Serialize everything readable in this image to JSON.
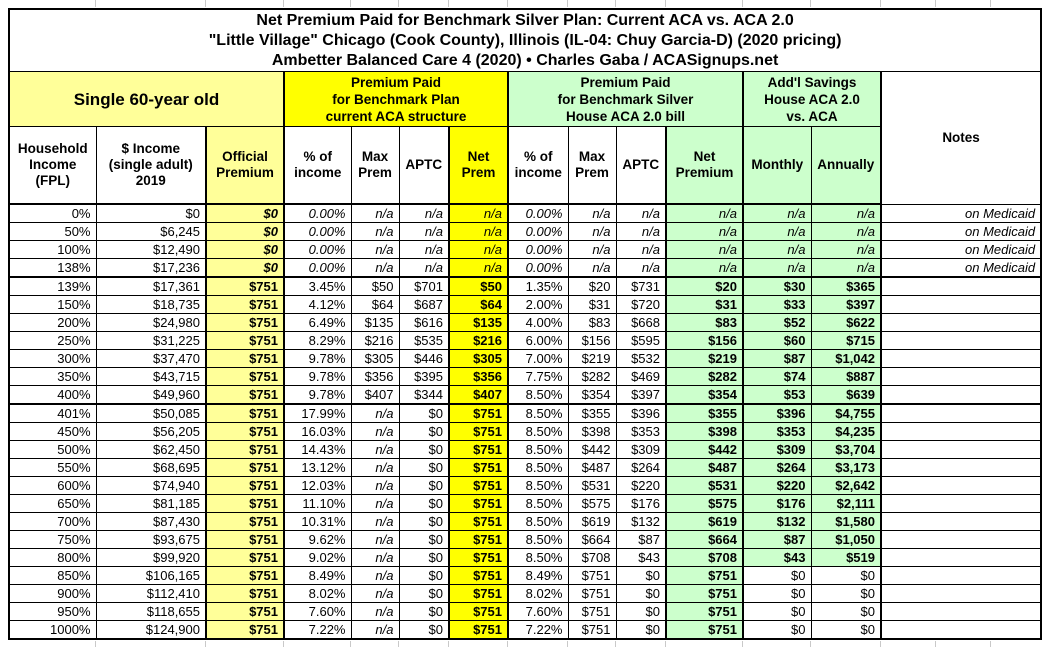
{
  "title": {
    "line1": "Net Premium Paid for Benchmark Silver Plan: Current ACA vs. ACA 2.0",
    "line2": "\"Little Village\" Chicago (Cook County), Illinois (IL-04: Chuy Garcia-D) (2020 pricing)",
    "line3": "Ambetter Balanced Care 4 (2020) • Charles Gaba / ACASignups.net"
  },
  "colors": {
    "pale_yellow": "#FFFF99",
    "bright_yellow": "#FFFF00",
    "pale_green": "#CCFFCC",
    "grid_black": "#000000"
  },
  "header": {
    "single_group": "Single 60-year old",
    "aca_group_lines": [
      "Premium Paid",
      "for Benchmark Plan",
      "current ACA structure"
    ],
    "aca2_group_lines": [
      "Premium Paid",
      "for Benchmark Silver",
      "House ACA 2.0 bill"
    ],
    "savings_group_lines": [
      "Add'l Savings",
      "House ACA 2.0",
      "vs. ACA"
    ],
    "notes": "Notes",
    "columns": [
      {
        "key": "household-income-fpl",
        "lines": [
          "Household",
          "Income",
          "(FPL)"
        ]
      },
      {
        "key": "income-2019",
        "lines": [
          "$ Income",
          "(single adult)",
          "2019"
        ]
      },
      {
        "key": "official-premium",
        "lines": [
          "Official",
          "Premium"
        ]
      },
      {
        "key": "aca-pct-of-income",
        "lines": [
          "% of",
          "income"
        ]
      },
      {
        "key": "aca-max-prem",
        "lines": [
          "Max",
          "Prem"
        ]
      },
      {
        "key": "aca-aptc",
        "lines": [
          "APTC"
        ]
      },
      {
        "key": "aca-net-prem",
        "lines": [
          "Net",
          "Prem"
        ]
      },
      {
        "key": "aca2-pct-of-income",
        "lines": [
          "% of",
          "income"
        ]
      },
      {
        "key": "aca2-max-prem",
        "lines": [
          "Max",
          "Prem"
        ]
      },
      {
        "key": "aca2-aptc",
        "lines": [
          "APTC"
        ]
      },
      {
        "key": "aca2-net-premium",
        "lines": [
          "Net",
          "Premium"
        ]
      },
      {
        "key": "monthly-savings",
        "lines": [
          "Monthly"
        ]
      },
      {
        "key": "annual-savings",
        "lines": [
          "Annually"
        ]
      }
    ]
  },
  "rows": [
    {
      "cells": [
        "0%",
        "$0",
        "$0",
        "0.00%",
        "n/a",
        "n/a",
        "n/a",
        "0.00%",
        "n/a",
        "n/a",
        "n/a",
        "n/a",
        "n/a",
        "on Medicaid"
      ],
      "medicaid": true
    },
    {
      "cells": [
        "50%",
        "$6,245",
        "$0",
        "0.00%",
        "n/a",
        "n/a",
        "n/a",
        "0.00%",
        "n/a",
        "n/a",
        "n/a",
        "n/a",
        "n/a",
        "on Medicaid"
      ],
      "medicaid": true
    },
    {
      "cells": [
        "100%",
        "$12,490",
        "$0",
        "0.00%",
        "n/a",
        "n/a",
        "n/a",
        "0.00%",
        "n/a",
        "n/a",
        "n/a",
        "n/a",
        "n/a",
        "on Medicaid"
      ],
      "medicaid": true
    },
    {
      "cells": [
        "138%",
        "$17,236",
        "$0",
        "0.00%",
        "n/a",
        "n/a",
        "n/a",
        "0.00%",
        "n/a",
        "n/a",
        "n/a",
        "n/a",
        "n/a",
        "on Medicaid"
      ],
      "medicaid": true,
      "thick_bottom": true
    },
    {
      "cells": [
        "139%",
        "$17,361",
        "$751",
        "3.45%",
        "$50",
        "$701",
        "$50",
        "1.35%",
        "$20",
        "$731",
        "$20",
        "$30",
        "$365",
        ""
      ]
    },
    {
      "cells": [
        "150%",
        "$18,735",
        "$751",
        "4.12%",
        "$64",
        "$687",
        "$64",
        "2.00%",
        "$31",
        "$720",
        "$31",
        "$33",
        "$397",
        ""
      ]
    },
    {
      "cells": [
        "200%",
        "$24,980",
        "$751",
        "6.49%",
        "$135",
        "$616",
        "$135",
        "4.00%",
        "$83",
        "$668",
        "$83",
        "$52",
        "$622",
        ""
      ]
    },
    {
      "cells": [
        "250%",
        "$31,225",
        "$751",
        "8.29%",
        "$216",
        "$535",
        "$216",
        "6.00%",
        "$156",
        "$595",
        "$156",
        "$60",
        "$715",
        ""
      ]
    },
    {
      "cells": [
        "300%",
        "$37,470",
        "$751",
        "9.78%",
        "$305",
        "$446",
        "$305",
        "7.00%",
        "$219",
        "$532",
        "$219",
        "$87",
        "$1,042",
        ""
      ]
    },
    {
      "cells": [
        "350%",
        "$43,715",
        "$751",
        "9.78%",
        "$356",
        "$395",
        "$356",
        "7.75%",
        "$282",
        "$469",
        "$282",
        "$74",
        "$887",
        ""
      ]
    },
    {
      "cells": [
        "400%",
        "$49,960",
        "$751",
        "9.78%",
        "$407",
        "$344",
        "$407",
        "8.50%",
        "$354",
        "$397",
        "$354",
        "$53",
        "$639",
        ""
      ],
      "thick_bottom": true
    },
    {
      "cells": [
        "401%",
        "$50,085",
        "$751",
        "17.99%",
        "n/a",
        "$0",
        "$751",
        "8.50%",
        "$355",
        "$396",
        "$355",
        "$396",
        "$4,755",
        ""
      ]
    },
    {
      "cells": [
        "450%",
        "$56,205",
        "$751",
        "16.03%",
        "n/a",
        "$0",
        "$751",
        "8.50%",
        "$398",
        "$353",
        "$398",
        "$353",
        "$4,235",
        ""
      ]
    },
    {
      "cells": [
        "500%",
        "$62,450",
        "$751",
        "14.43%",
        "n/a",
        "$0",
        "$751",
        "8.50%",
        "$442",
        "$309",
        "$442",
        "$309",
        "$3,704",
        ""
      ]
    },
    {
      "cells": [
        "550%",
        "$68,695",
        "$751",
        "13.12%",
        "n/a",
        "$0",
        "$751",
        "8.50%",
        "$487",
        "$264",
        "$487",
        "$264",
        "$3,173",
        ""
      ]
    },
    {
      "cells": [
        "600%",
        "$74,940",
        "$751",
        "12.03%",
        "n/a",
        "$0",
        "$751",
        "8.50%",
        "$531",
        "$220",
        "$531",
        "$220",
        "$2,642",
        ""
      ]
    },
    {
      "cells": [
        "650%",
        "$81,185",
        "$751",
        "11.10%",
        "n/a",
        "$0",
        "$751",
        "8.50%",
        "$575",
        "$176",
        "$575",
        "$176",
        "$2,111",
        ""
      ]
    },
    {
      "cells": [
        "700%",
        "$87,430",
        "$751",
        "10.31%",
        "n/a",
        "$0",
        "$751",
        "8.50%",
        "$619",
        "$132",
        "$619",
        "$132",
        "$1,580",
        ""
      ]
    },
    {
      "cells": [
        "750%",
        "$93,675",
        "$751",
        "9.62%",
        "n/a",
        "$0",
        "$751",
        "8.50%",
        "$664",
        "$87",
        "$664",
        "$87",
        "$1,050",
        ""
      ]
    },
    {
      "cells": [
        "800%",
        "$99,920",
        "$751",
        "9.02%",
        "n/a",
        "$0",
        "$751",
        "8.50%",
        "$708",
        "$43",
        "$708",
        "$43",
        "$519",
        ""
      ]
    },
    {
      "cells": [
        "850%",
        "$106,165",
        "$751",
        "8.49%",
        "n/a",
        "$0",
        "$751",
        "8.49%",
        "$751",
        "$0",
        "$751",
        "$0",
        "$0",
        ""
      ],
      "plain_savings": true
    },
    {
      "cells": [
        "900%",
        "$112,410",
        "$751",
        "8.02%",
        "n/a",
        "$0",
        "$751",
        "8.02%",
        "$751",
        "$0",
        "$751",
        "$0",
        "$0",
        ""
      ],
      "plain_savings": true
    },
    {
      "cells": [
        "950%",
        "$118,655",
        "$751",
        "7.60%",
        "n/a",
        "$0",
        "$751",
        "7.60%",
        "$751",
        "$0",
        "$751",
        "$0",
        "$0",
        ""
      ],
      "plain_savings": true
    },
    {
      "cells": [
        "1000%",
        "$124,900",
        "$751",
        "7.22%",
        "n/a",
        "$0",
        "$751",
        "7.22%",
        "$751",
        "$0",
        "$751",
        "$0",
        "$0",
        ""
      ],
      "plain_savings": true
    }
  ]
}
